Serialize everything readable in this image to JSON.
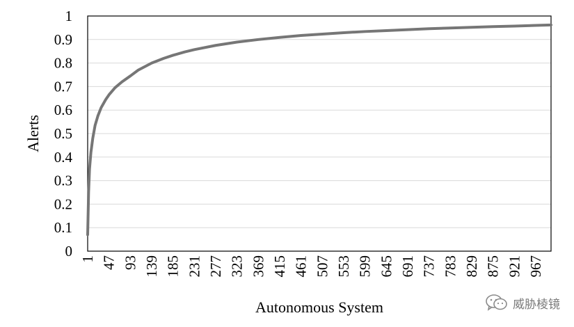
{
  "chart_data": {
    "type": "line",
    "xlabel": "Autonomous System",
    "ylabel": "Alerts",
    "ylim": [
      0,
      1
    ],
    "xlim": [
      1,
      1000
    ],
    "y_ticks": [
      "0",
      "0.1",
      "0.2",
      "0.3",
      "0.4",
      "0.5",
      "0.6",
      "0.7",
      "0.8",
      "0.9",
      "1"
    ],
    "x_ticks": [
      "1",
      "47",
      "93",
      "139",
      "185",
      "231",
      "277",
      "323",
      "369",
      "415",
      "461",
      "507",
      "553",
      "599",
      "645",
      "691",
      "737",
      "783",
      "829",
      "875",
      "921",
      "967"
    ],
    "grid": true,
    "legend": "none",
    "series": [
      {
        "color": "#767676",
        "x": [
          1,
          2,
          3,
          5,
          8,
          12,
          17,
          23,
          30,
          40,
          47,
          60,
          75,
          93,
          110,
          139,
          165,
          185,
          210,
          231,
          277,
          323,
          369,
          415,
          461,
          507,
          553,
          599,
          645,
          691,
          737,
          783,
          829,
          875,
          921,
          967,
          1000
        ],
        "y": [
          0.07,
          0.16,
          0.25,
          0.35,
          0.42,
          0.48,
          0.535,
          0.575,
          0.61,
          0.645,
          0.665,
          0.695,
          0.72,
          0.745,
          0.77,
          0.8,
          0.82,
          0.833,
          0.847,
          0.857,
          0.875,
          0.889,
          0.9,
          0.909,
          0.917,
          0.923,
          0.929,
          0.934,
          0.938,
          0.942,
          0.946,
          0.949,
          0.952,
          0.955,
          0.957,
          0.96,
          0.962
        ]
      }
    ]
  },
  "watermark": {
    "text": "威胁棱镜",
    "icon": "wechat-logo-icon"
  }
}
